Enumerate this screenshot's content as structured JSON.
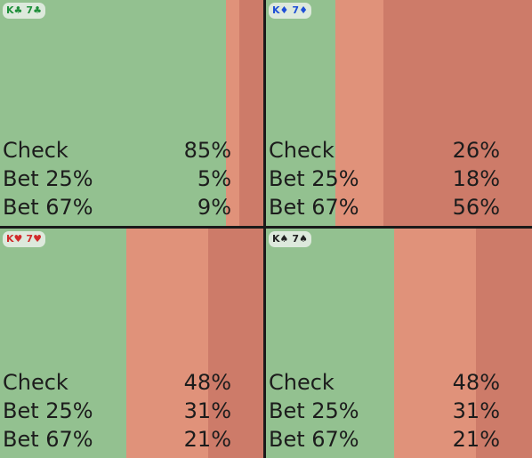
{
  "colors": {
    "check": "#93c190",
    "bet25": "#e0927a",
    "bet67": "#cd7b69"
  },
  "panels": [
    {
      "hand": {
        "r1": "K",
        "s1": "♣",
        "r2": "7",
        "s2": "♣",
        "color": "#1f8f3a"
      },
      "actions": [
        {
          "label": "Check",
          "value": "85%",
          "freq": 0.85
        },
        {
          "label": "Bet 25%",
          "value": "5%",
          "freq": 0.05
        },
        {
          "label": "Bet 67%",
          "value": "9%",
          "freq": 0.09
        }
      ]
    },
    {
      "hand": {
        "r1": "K",
        "s1": "♦",
        "r2": "7",
        "s2": "♦",
        "color": "#1e4fd6"
      },
      "actions": [
        {
          "label": "Check",
          "value": "26%",
          "freq": 0.26
        },
        {
          "label": "Bet 25%",
          "value": "18%",
          "freq": 0.18
        },
        {
          "label": "Bet 67%",
          "value": "56%",
          "freq": 0.56
        }
      ]
    },
    {
      "hand": {
        "r1": "K",
        "s1": "♥",
        "r2": "7",
        "s2": "♥",
        "color": "#d12b2b"
      },
      "actions": [
        {
          "label": "Check",
          "value": "48%",
          "freq": 0.48
        },
        {
          "label": "Bet 25%",
          "value": "31%",
          "freq": 0.31
        },
        {
          "label": "Bet 67%",
          "value": "21%",
          "freq": 0.21
        }
      ]
    },
    {
      "hand": {
        "r1": "K",
        "s1": "♠",
        "r2": "7",
        "s2": "♠",
        "color": "#222222"
      },
      "actions": [
        {
          "label": "Check",
          "value": "48%",
          "freq": 0.48
        },
        {
          "label": "Bet 25%",
          "value": "31%",
          "freq": 0.31
        },
        {
          "label": "Bet 67%",
          "value": "21%",
          "freq": 0.21
        }
      ]
    }
  ]
}
